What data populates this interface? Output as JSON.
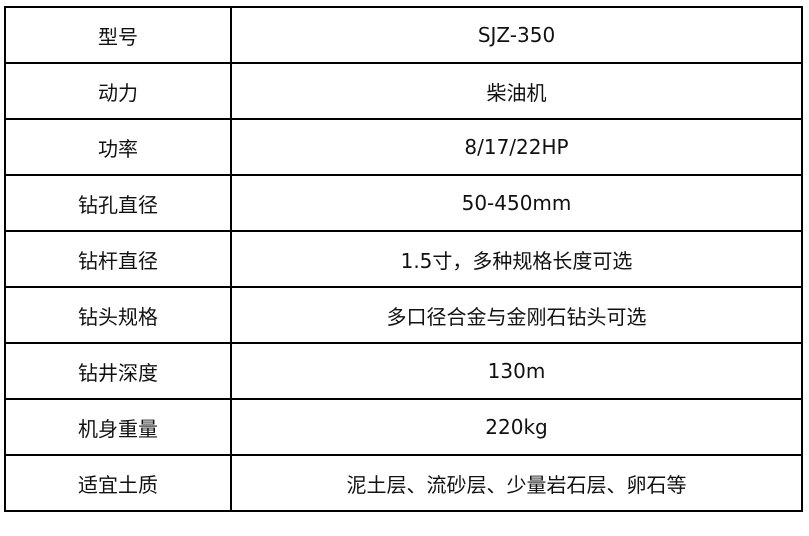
{
  "rows": [
    {
      "label": "型号",
      "value": "SJZ-350"
    },
    {
      "label": "动力",
      "value": "柴油机"
    },
    {
      "label": "功率",
      "value": "8/17/22HP"
    },
    {
      "label": "钻孔直径",
      "value": "50-450mm"
    },
    {
      "label": "钻杆直径",
      "value": "1.5寸，多种规格长度可选"
    },
    {
      "label": "钻头规格",
      "value": "多口径合金与金刚石钻头可选"
    },
    {
      "label": "钻井深度",
      "value": "130m"
    },
    {
      "label": "机身重量",
      "value": "220kg"
    },
    {
      "label": "适宜土质",
      "value": "泥土层、流砂层、少量岩石层、卵石等"
    }
  ]
}
